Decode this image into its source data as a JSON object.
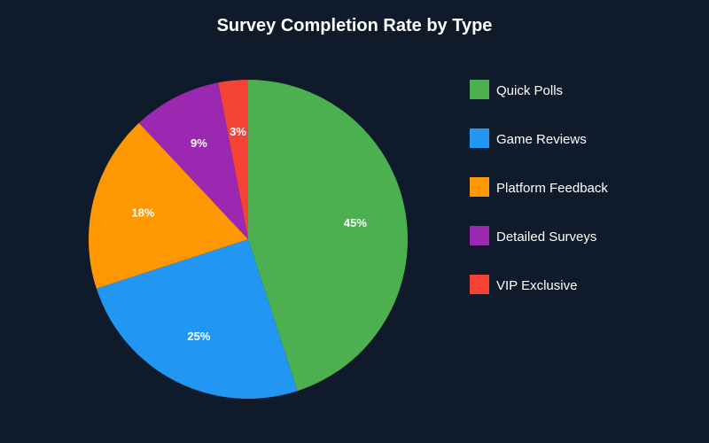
{
  "chart_data": {
    "type": "pie",
    "title": "Survey Completion Rate by Type",
    "categories": [
      "Quick Polls",
      "Game Reviews",
      "Platform Feedback",
      "Detailed Surveys",
      "VIP Exclusive"
    ],
    "values": [
      45,
      25,
      18,
      9,
      3
    ],
    "value_labels": [
      "45%",
      "25%",
      "18%",
      "9%",
      "3%"
    ],
    "colors": [
      "#4caf50",
      "#2196f3",
      "#ff9800",
      "#9c27b0",
      "#f44336"
    ],
    "background": "#0f1a2a",
    "start_angle": "top",
    "direction": "clockwise",
    "legend": "right"
  }
}
